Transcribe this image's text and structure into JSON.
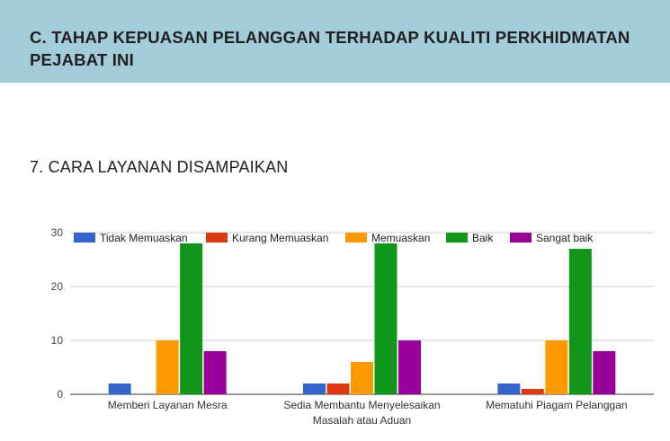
{
  "section": {
    "title": "C. TAHAP KEPUASAN PELANGGAN TERHADAP KUALITI PERKHIDMATAN PEJABAT INI"
  },
  "question": {
    "title": "7. CARA LAYANAN DISAMPAIKAN"
  },
  "chart_data": {
    "type": "bar",
    "categories": [
      [
        "Memberi Layanan Mesra"
      ],
      [
        "Sedia Membantu Menyelesaikan",
        "Masalah atau Aduan"
      ],
      [
        "Mematuhi Piagam Pelanggan"
      ]
    ],
    "series": [
      {
        "name": "Tidak Memuaskan",
        "color": "#3366cc",
        "values": [
          2,
          2,
          2
        ]
      },
      {
        "name": "Kurang Memuaskan",
        "color": "#dc3912",
        "values": [
          0,
          2,
          1
        ]
      },
      {
        "name": "Memuaskan",
        "color": "#ff9900",
        "values": [
          10,
          6,
          10
        ]
      },
      {
        "name": "Baik",
        "color": "#109618",
        "values": [
          28,
          28,
          27
        ]
      },
      {
        "name": "Sangat baik",
        "color": "#990099",
        "values": [
          8,
          10,
          8
        ]
      }
    ],
    "yticks": [
      0,
      10,
      20,
      30
    ],
    "ylim": [
      0,
      30
    ],
    "grid": true,
    "legend": "top"
  }
}
